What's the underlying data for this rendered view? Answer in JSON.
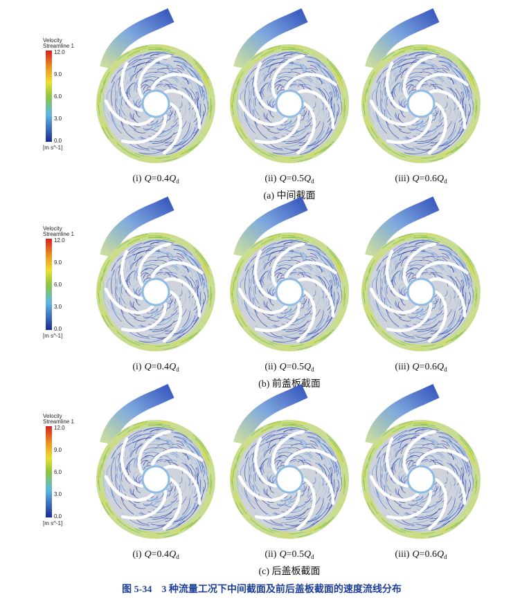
{
  "panels": [
    {
      "legend": {
        "title": "Velocity",
        "subtitle": "Streamline 1",
        "ticks": [
          "12.0",
          "9.0",
          "6.0",
          "3.0",
          "0.0"
        ],
        "unit": "[m s^-1]"
      },
      "cases": [
        {
          "roman": "(i)",
          "q": "Q",
          "eq": "=0.4",
          "q2": "Q",
          "sub": "d"
        },
        {
          "roman": "(ii)",
          "q": "Q",
          "eq": "=0.5",
          "q2": "Q",
          "sub": "d"
        },
        {
          "roman": "(iii)",
          "q": "Q",
          "eq": "=0.6",
          "q2": "Q",
          "sub": "d"
        }
      ],
      "caption": "(a) 中间截面"
    },
    {
      "legend": {
        "title": "Velocity",
        "subtitle": "Streamline 1",
        "ticks": [
          "12.0",
          "9.0",
          "6.0",
          "3.0",
          "0.0"
        ],
        "unit": "[m s^-1]"
      },
      "cases": [
        {
          "roman": "(i)",
          "q": "Q",
          "eq": "=0.4",
          "q2": "Q",
          "sub": "d"
        },
        {
          "roman": "(ii)",
          "q": "Q",
          "eq": "=0.5",
          "q2": "Q",
          "sub": "d"
        },
        {
          "roman": "(iii)",
          "q": "Q",
          "eq": "=0.6",
          "q2": "Q",
          "sub": "d"
        }
      ],
      "caption": "(b) 前盖板截面"
    },
    {
      "legend": {
        "title": "Velocity",
        "subtitle": "Streamline 1",
        "ticks": [
          "12.0",
          "9.0",
          "6.0",
          "3.0",
          "0.0"
        ],
        "unit": "[m s^-1]"
      },
      "cases": [
        {
          "roman": "(i)",
          "q": "Q",
          "eq": "=0.4",
          "q2": "Q",
          "sub": "d"
        },
        {
          "roman": "(ii)",
          "q": "Q",
          "eq": "=0.5",
          "q2": "Q",
          "sub": "d"
        },
        {
          "roman": "(iii)",
          "q": "Q",
          "eq": "=0.6",
          "q2": "Q",
          "sub": "d"
        }
      ],
      "caption": "(c) 后盖板截面"
    }
  ],
  "figure_caption": "图 5-34　3 种流量工况下中间截面及前后盖板截面的速度流线分布"
}
